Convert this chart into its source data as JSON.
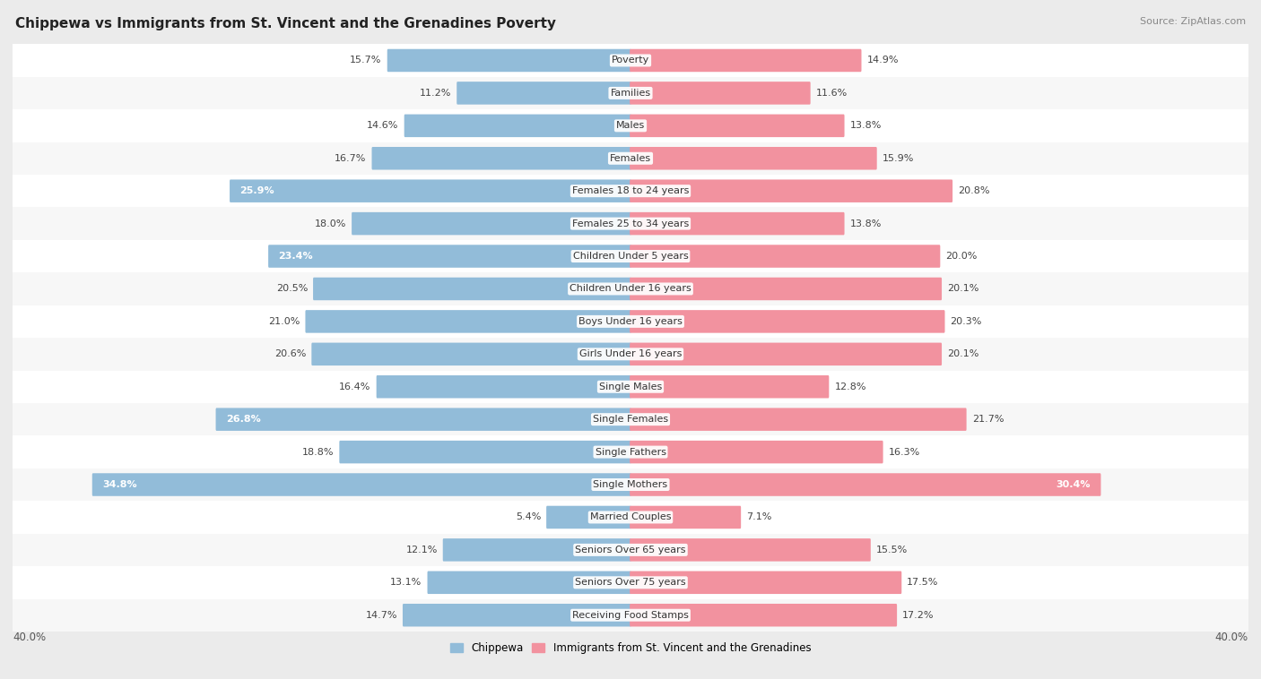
{
  "title": "Chippewa vs Immigrants from St. Vincent and the Grenadines Poverty",
  "source": "Source: ZipAtlas.com",
  "categories": [
    "Poverty",
    "Families",
    "Males",
    "Females",
    "Females 18 to 24 years",
    "Females 25 to 34 years",
    "Children Under 5 years",
    "Children Under 16 years",
    "Boys Under 16 years",
    "Girls Under 16 years",
    "Single Males",
    "Single Females",
    "Single Fathers",
    "Single Mothers",
    "Married Couples",
    "Seniors Over 65 years",
    "Seniors Over 75 years",
    "Receiving Food Stamps"
  ],
  "chippewa": [
    15.7,
    11.2,
    14.6,
    16.7,
    25.9,
    18.0,
    23.4,
    20.5,
    21.0,
    20.6,
    16.4,
    26.8,
    18.8,
    34.8,
    5.4,
    12.1,
    13.1,
    14.7
  ],
  "immigrants": [
    14.9,
    11.6,
    13.8,
    15.9,
    20.8,
    13.8,
    20.0,
    20.1,
    20.3,
    20.1,
    12.8,
    21.7,
    16.3,
    30.4,
    7.1,
    15.5,
    17.5,
    17.2
  ],
  "chippewa_color": "#92bcd9",
  "immigrant_color": "#f2929f",
  "bg_color": "#ebebeb",
  "row_bg_even": "#f7f7f7",
  "row_bg_odd": "#ffffff",
  "axis_limit": 40.0,
  "legend_chippewa": "Chippewa",
  "legend_immigrants": "Immigrants from St. Vincent and the Grenadines",
  "bar_height": 0.6,
  "label_inside_threshold": 22,
  "fontsize_labels": 8,
  "fontsize_title": 11,
  "fontsize_source": 8,
  "fontsize_axis": 8.5,
  "fontsize_legend": 8.5
}
